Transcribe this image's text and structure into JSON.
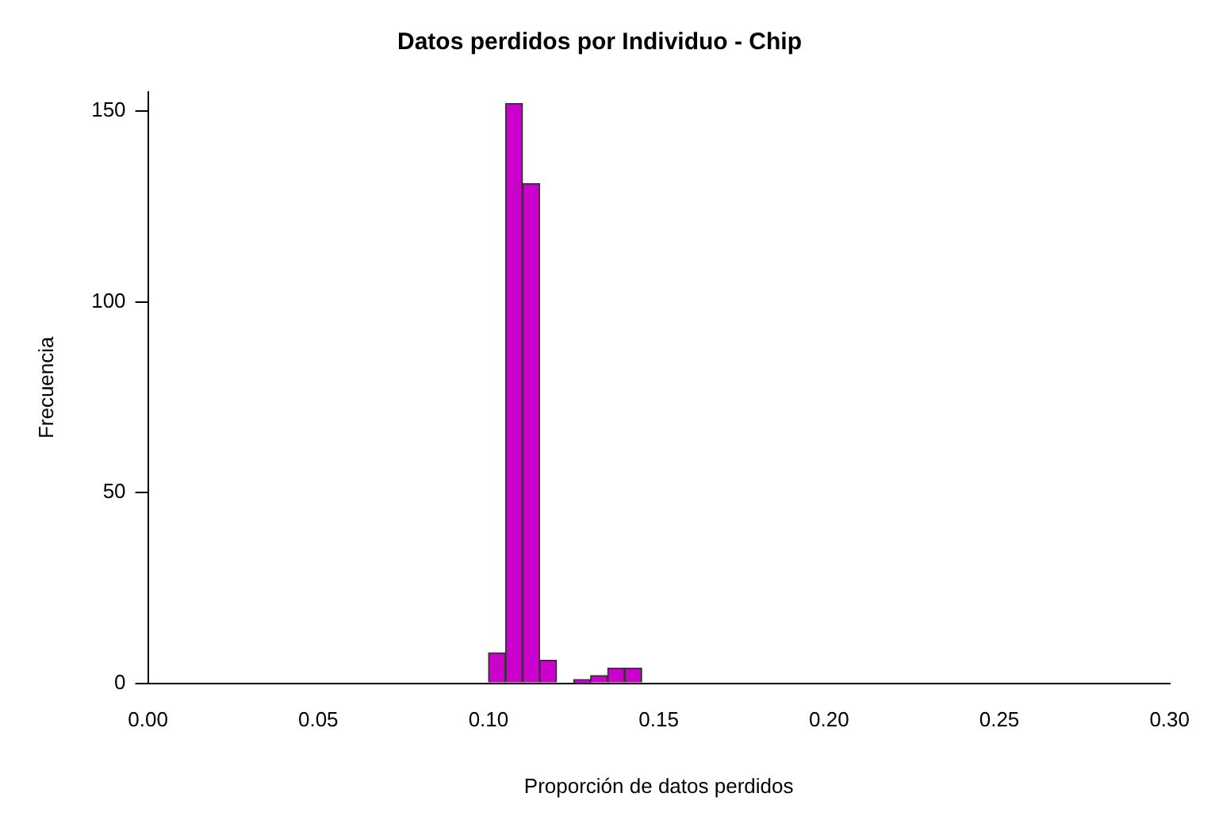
{
  "chart_data": {
    "type": "histogram",
    "title": "Datos perdidos por Individuo - Chip",
    "xlabel": "Proporción de datos perdidos",
    "ylabel": "Frecuencia",
    "bins": [
      0.1,
      0.105,
      0.11,
      0.115,
      0.12,
      0.125,
      0.13,
      0.135,
      0.14,
      0.145
    ],
    "values": [
      8,
      152,
      131,
      6,
      0,
      1,
      2,
      4,
      4
    ],
    "color": "#cc00cc",
    "xlim": [
      0,
      0.3
    ],
    "xticks": [
      {
        "value": 0,
        "label": "0.00"
      },
      {
        "value": 0.05,
        "label": "0.05"
      },
      {
        "value": 0.1,
        "label": "0.10"
      },
      {
        "value": 0.15,
        "label": "0.15"
      },
      {
        "value": 0.2,
        "label": "0.20"
      },
      {
        "value": 0.25,
        "label": "0.25"
      },
      {
        "value": 0.3,
        "label": "0.30"
      }
    ],
    "ylim": [
      0,
      155
    ],
    "yticks": [
      0,
      50,
      100,
      150
    ],
    "grid": false,
    "legend": false
  }
}
